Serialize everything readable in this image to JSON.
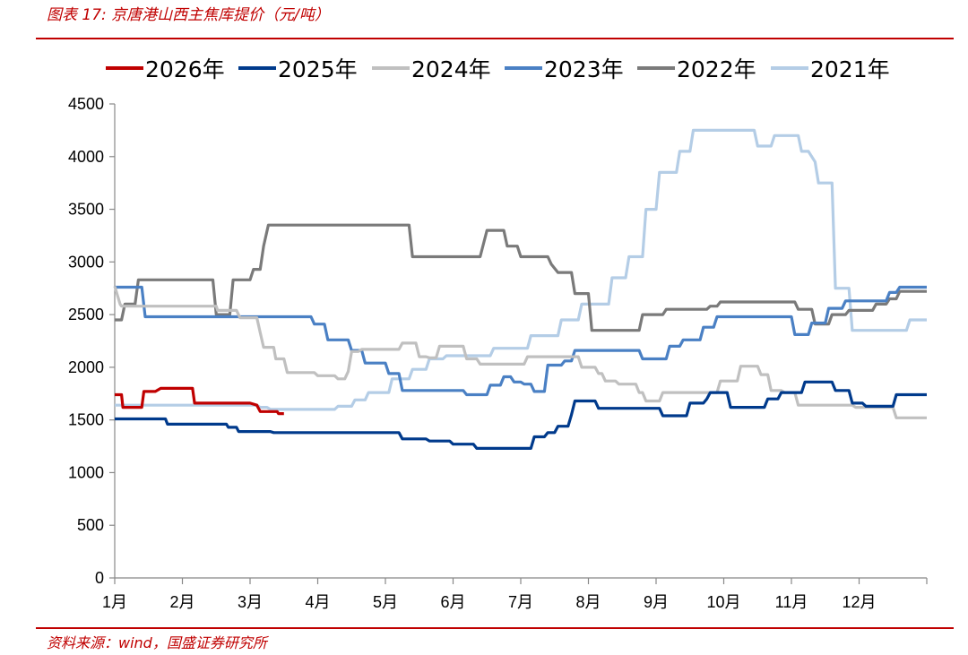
{
  "header": {
    "title": "图表 17:  京唐港山西主焦库提价（元/吨）"
  },
  "footer": {
    "source": "资料来源：wind，国盛证券研究所"
  },
  "chart_data": {
    "type": "line",
    "ylim": [
      0,
      4500
    ],
    "y_ticks": [
      "0",
      "500",
      "1000",
      "1500",
      "2000",
      "2500",
      "3000",
      "3500",
      "4000",
      "4500"
    ],
    "x_tick_labels": [
      "1月",
      "2月",
      "3月",
      "4月",
      "5月",
      "6月",
      "7月",
      "8月",
      "9月",
      "10月",
      "11月",
      "12月"
    ],
    "grid": false,
    "legend_position": "top",
    "series": [
      {
        "name": "2026年",
        "color": "#c00000",
        "points": [
          [
            0,
            1740
          ],
          [
            0.1,
            1740
          ],
          [
            0.12,
            1620
          ],
          [
            0.4,
            1620
          ],
          [
            0.43,
            1770
          ],
          [
            0.6,
            1770
          ],
          [
            0.68,
            1800
          ],
          [
            1.15,
            1800
          ],
          [
            1.18,
            1660
          ],
          [
            2.0,
            1660
          ],
          [
            2.1,
            1640
          ],
          [
            2.15,
            1580
          ],
          [
            2.4,
            1580
          ],
          [
            2.42,
            1560
          ],
          [
            2.5,
            1560
          ]
        ]
      },
      {
        "name": "2025年",
        "color": "#003a8c",
        "points": [
          [
            0,
            1510
          ],
          [
            0.75,
            1510
          ],
          [
            0.78,
            1460
          ],
          [
            1.65,
            1460
          ],
          [
            1.68,
            1430
          ],
          [
            1.8,
            1430
          ],
          [
            1.83,
            1390
          ],
          [
            2.3,
            1390
          ],
          [
            2.35,
            1380
          ],
          [
            4.2,
            1380
          ],
          [
            4.25,
            1320
          ],
          [
            4.6,
            1320
          ],
          [
            4.65,
            1300
          ],
          [
            4.95,
            1300
          ],
          [
            5.0,
            1270
          ],
          [
            5.3,
            1270
          ],
          [
            5.35,
            1230
          ],
          [
            6.15,
            1230
          ],
          [
            6.2,
            1340
          ],
          [
            6.35,
            1340
          ],
          [
            6.4,
            1380
          ],
          [
            6.5,
            1380
          ],
          [
            6.55,
            1440
          ],
          [
            6.7,
            1440
          ],
          [
            6.75,
            1550
          ],
          [
            6.8,
            1680
          ],
          [
            7.1,
            1680
          ],
          [
            7.15,
            1610
          ],
          [
            8.05,
            1610
          ],
          [
            8.1,
            1540
          ],
          [
            8.45,
            1540
          ],
          [
            8.5,
            1660
          ],
          [
            8.7,
            1660
          ],
          [
            8.75,
            1700
          ],
          [
            8.8,
            1760
          ],
          [
            9.05,
            1760
          ],
          [
            9.1,
            1620
          ],
          [
            9.6,
            1620
          ],
          [
            9.65,
            1700
          ],
          [
            9.8,
            1700
          ],
          [
            9.85,
            1760
          ],
          [
            10.15,
            1760
          ],
          [
            10.2,
            1860
          ],
          [
            10.6,
            1860
          ],
          [
            10.65,
            1780
          ],
          [
            10.85,
            1780
          ],
          [
            10.9,
            1660
          ],
          [
            11.05,
            1660
          ],
          [
            11.1,
            1630
          ],
          [
            11.5,
            1630
          ],
          [
            11.55,
            1740
          ],
          [
            12.0,
            1740
          ]
        ]
      },
      {
        "name": "2024年",
        "color": "#c0c0c0",
        "points": [
          [
            0,
            2770
          ],
          [
            0.08,
            2600
          ],
          [
            0.1,
            2580
          ],
          [
            1.5,
            2580
          ],
          [
            1.52,
            2540
          ],
          [
            1.8,
            2540
          ],
          [
            1.85,
            2470
          ],
          [
            2.1,
            2470
          ],
          [
            2.15,
            2330
          ],
          [
            2.2,
            2190
          ],
          [
            2.35,
            2190
          ],
          [
            2.38,
            2080
          ],
          [
            2.5,
            2080
          ],
          [
            2.55,
            1950
          ],
          [
            2.95,
            1950
          ],
          [
            3.0,
            1920
          ],
          [
            3.25,
            1920
          ],
          [
            3.3,
            1890
          ],
          [
            3.4,
            1890
          ],
          [
            3.45,
            1960
          ],
          [
            3.5,
            2150
          ],
          [
            3.6,
            2150
          ],
          [
            3.65,
            2170
          ],
          [
            4.2,
            2170
          ],
          [
            4.25,
            2230
          ],
          [
            4.45,
            2230
          ],
          [
            4.5,
            2100
          ],
          [
            4.6,
            2100
          ],
          [
            4.65,
            2090
          ],
          [
            4.75,
            2090
          ],
          [
            4.8,
            2200
          ],
          [
            5.15,
            2200
          ],
          [
            5.2,
            2080
          ],
          [
            5.35,
            2080
          ],
          [
            5.4,
            2030
          ],
          [
            6.05,
            2030
          ],
          [
            6.1,
            2100
          ],
          [
            6.85,
            2100
          ],
          [
            6.9,
            2000
          ],
          [
            7.1,
            2000
          ],
          [
            7.15,
            1940
          ],
          [
            7.2,
            1940
          ],
          [
            7.25,
            1870
          ],
          [
            7.4,
            1870
          ],
          [
            7.45,
            1840
          ],
          [
            7.7,
            1840
          ],
          [
            7.75,
            1760
          ],
          [
            7.8,
            1760
          ],
          [
            7.85,
            1680
          ],
          [
            8.05,
            1680
          ],
          [
            8.1,
            1760
          ],
          [
            8.9,
            1760
          ],
          [
            8.95,
            1870
          ],
          [
            9.2,
            1870
          ],
          [
            9.25,
            2010
          ],
          [
            9.5,
            2010
          ],
          [
            9.55,
            1930
          ],
          [
            9.65,
            1930
          ],
          [
            9.7,
            1780
          ],
          [
            9.85,
            1780
          ],
          [
            9.9,
            1760
          ],
          [
            10.05,
            1760
          ],
          [
            10.1,
            1640
          ],
          [
            10.9,
            1640
          ],
          [
            10.95,
            1620
          ],
          [
            11.5,
            1620
          ],
          [
            11.55,
            1520
          ],
          [
            12.0,
            1520
          ]
        ]
      },
      {
        "name": "2023年",
        "color": "#4a80c4",
        "points": [
          [
            0,
            2760
          ],
          [
            0.4,
            2760
          ],
          [
            0.45,
            2480
          ],
          [
            2.9,
            2480
          ],
          [
            2.95,
            2410
          ],
          [
            3.1,
            2410
          ],
          [
            3.15,
            2260
          ],
          [
            3.45,
            2260
          ],
          [
            3.5,
            2160
          ],
          [
            3.65,
            2160
          ],
          [
            3.7,
            2040
          ],
          [
            4.0,
            2040
          ],
          [
            4.05,
            1940
          ],
          [
            4.2,
            1940
          ],
          [
            4.25,
            1780
          ],
          [
            5.15,
            1780
          ],
          [
            5.2,
            1740
          ],
          [
            5.5,
            1740
          ],
          [
            5.55,
            1830
          ],
          [
            5.7,
            1830
          ],
          [
            5.75,
            1910
          ],
          [
            5.85,
            1910
          ],
          [
            5.9,
            1860
          ],
          [
            6.0,
            1860
          ],
          [
            6.05,
            1840
          ],
          [
            6.15,
            1840
          ],
          [
            6.2,
            1770
          ],
          [
            6.35,
            1770
          ],
          [
            6.4,
            2020
          ],
          [
            6.6,
            2020
          ],
          [
            6.65,
            2060
          ],
          [
            6.75,
            2060
          ],
          [
            6.8,
            2160
          ],
          [
            7.75,
            2160
          ],
          [
            7.8,
            2080
          ],
          [
            8.15,
            2080
          ],
          [
            8.2,
            2200
          ],
          [
            8.35,
            2200
          ],
          [
            8.4,
            2260
          ],
          [
            8.65,
            2260
          ],
          [
            8.7,
            2380
          ],
          [
            8.85,
            2380
          ],
          [
            8.9,
            2480
          ],
          [
            10.0,
            2480
          ],
          [
            10.05,
            2310
          ],
          [
            10.25,
            2310
          ],
          [
            10.3,
            2420
          ],
          [
            10.5,
            2420
          ],
          [
            10.55,
            2560
          ],
          [
            10.75,
            2560
          ],
          [
            10.8,
            2630
          ],
          [
            11.4,
            2630
          ],
          [
            11.45,
            2710
          ],
          [
            11.55,
            2710
          ],
          [
            11.6,
            2760
          ],
          [
            12.0,
            2760
          ]
        ]
      },
      {
        "name": "2022年",
        "color": "#7a7a7a",
        "points": [
          [
            0,
            2450
          ],
          [
            0.1,
            2450
          ],
          [
            0.15,
            2600
          ],
          [
            0.3,
            2600
          ],
          [
            0.35,
            2830
          ],
          [
            1.45,
            2830
          ],
          [
            1.5,
            2500
          ],
          [
            1.7,
            2500
          ],
          [
            1.75,
            2830
          ],
          [
            2.0,
            2830
          ],
          [
            2.05,
            2930
          ],
          [
            2.15,
            2930
          ],
          [
            2.2,
            3150
          ],
          [
            2.27,
            3350
          ],
          [
            4.35,
            3350
          ],
          [
            4.4,
            3050
          ],
          [
            5.4,
            3050
          ],
          [
            5.5,
            3300
          ],
          [
            5.75,
            3300
          ],
          [
            5.8,
            3150
          ],
          [
            5.95,
            3150
          ],
          [
            6.0,
            3050
          ],
          [
            6.4,
            3050
          ],
          [
            6.45,
            2980
          ],
          [
            6.55,
            2900
          ],
          [
            6.75,
            2900
          ],
          [
            6.8,
            2700
          ],
          [
            7.0,
            2700
          ],
          [
            7.05,
            2350
          ],
          [
            7.75,
            2350
          ],
          [
            7.8,
            2500
          ],
          [
            8.1,
            2500
          ],
          [
            8.15,
            2550
          ],
          [
            8.75,
            2550
          ],
          [
            8.8,
            2580
          ],
          [
            8.9,
            2580
          ],
          [
            8.95,
            2620
          ],
          [
            10.05,
            2620
          ],
          [
            10.1,
            2550
          ],
          [
            10.3,
            2550
          ],
          [
            10.35,
            2410
          ],
          [
            10.55,
            2410
          ],
          [
            10.6,
            2500
          ],
          [
            10.8,
            2500
          ],
          [
            10.85,
            2540
          ],
          [
            11.2,
            2540
          ],
          [
            11.25,
            2600
          ],
          [
            11.4,
            2600
          ],
          [
            11.45,
            2650
          ],
          [
            11.55,
            2650
          ],
          [
            11.6,
            2720
          ],
          [
            12.0,
            2720
          ]
        ]
      },
      {
        "name": "2021年",
        "color": "#b4cde6",
        "points": [
          [
            0,
            1640
          ],
          [
            2.1,
            1640
          ],
          [
            2.15,
            1620
          ],
          [
            2.25,
            1620
          ],
          [
            2.3,
            1600
          ],
          [
            3.25,
            1600
          ],
          [
            3.3,
            1630
          ],
          [
            3.5,
            1630
          ],
          [
            3.55,
            1690
          ],
          [
            3.7,
            1690
          ],
          [
            3.75,
            1760
          ],
          [
            4.05,
            1760
          ],
          [
            4.1,
            1890
          ],
          [
            4.35,
            1890
          ],
          [
            4.4,
            1980
          ],
          [
            4.6,
            1980
          ],
          [
            4.65,
            2080
          ],
          [
            4.85,
            2080
          ],
          [
            4.9,
            2110
          ],
          [
            5.55,
            2110
          ],
          [
            5.6,
            2180
          ],
          [
            6.1,
            2180
          ],
          [
            6.15,
            2300
          ],
          [
            6.55,
            2300
          ],
          [
            6.6,
            2450
          ],
          [
            6.85,
            2450
          ],
          [
            6.9,
            2600
          ],
          [
            7.3,
            2600
          ],
          [
            7.35,
            2850
          ],
          [
            7.55,
            2850
          ],
          [
            7.6,
            3050
          ],
          [
            7.8,
            3050
          ],
          [
            7.85,
            3500
          ],
          [
            8.0,
            3500
          ],
          [
            8.05,
            3850
          ],
          [
            8.3,
            3850
          ],
          [
            8.35,
            4050
          ],
          [
            8.5,
            4050
          ],
          [
            8.55,
            4250
          ],
          [
            9.45,
            4250
          ],
          [
            9.5,
            4100
          ],
          [
            9.7,
            4100
          ],
          [
            9.75,
            4200
          ],
          [
            10.1,
            4200
          ],
          [
            10.15,
            4050
          ],
          [
            10.25,
            4050
          ],
          [
            10.35,
            3950
          ],
          [
            10.4,
            3750
          ],
          [
            10.6,
            3750
          ],
          [
            10.65,
            2750
          ],
          [
            10.85,
            2750
          ],
          [
            10.9,
            2350
          ],
          [
            11.7,
            2350
          ],
          [
            11.75,
            2450
          ],
          [
            12.0,
            2450
          ]
        ]
      }
    ]
  }
}
